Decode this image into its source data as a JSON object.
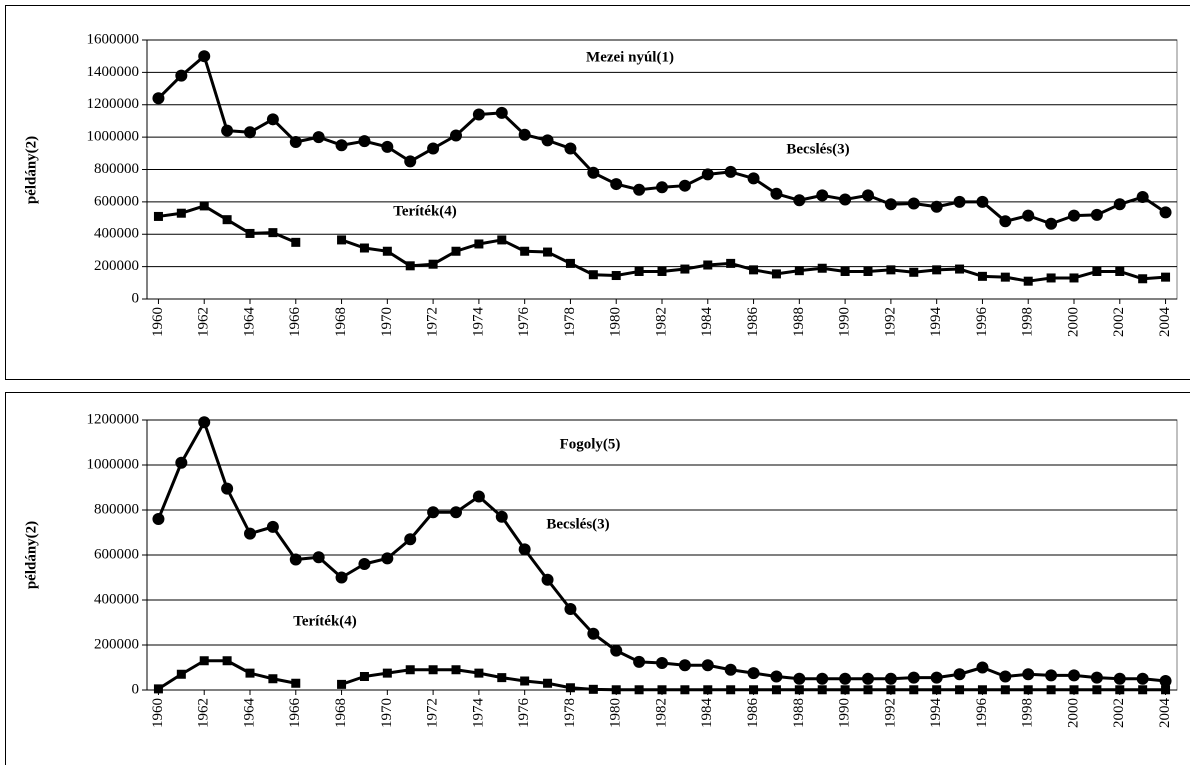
{
  "chart_data": [
    {
      "type": "line",
      "title": "Mezei nyúl(1)",
      "y_label": "példány(2)",
      "x": [
        1960,
        1961,
        1962,
        1963,
        1964,
        1965,
        1966,
        1967,
        1968,
        1969,
        1970,
        1971,
        1972,
        1973,
        1974,
        1975,
        1976,
        1977,
        1978,
        1979,
        1980,
        1981,
        1982,
        1983,
        1984,
        1985,
        1986,
        1987,
        1988,
        1989,
        1990,
        1991,
        1992,
        1993,
        1994,
        1995,
        1996,
        1997,
        1998,
        1999,
        2000,
        2001,
        2002,
        2003,
        2004
      ],
      "xlim": [
        1959.5,
        2004.5
      ],
      "xticks": [
        1960,
        1962,
        1964,
        1966,
        1968,
        1970,
        1972,
        1974,
        1976,
        1978,
        1980,
        1982,
        1984,
        1986,
        1988,
        1990,
        1992,
        1994,
        1996,
        1998,
        2000,
        2002,
        2004
      ],
      "ylim": [
        0,
        1600000
      ],
      "yticks": [
        0,
        200000,
        400000,
        600000,
        800000,
        1000000,
        1200000,
        1400000,
        1600000
      ],
      "grid": true,
      "series": [
        {
          "name": "Becslés(3)",
          "color": "#000000",
          "marker": "circle",
          "values": [
            1240000,
            1380000,
            1500000,
            1040000,
            1030000,
            1110000,
            970000,
            1000000,
            950000,
            975000,
            940000,
            850000,
            930000,
            1010000,
            1140000,
            1150000,
            1015000,
            980000,
            930000,
            780000,
            710000,
            675000,
            690000,
            700000,
            770000,
            785000,
            745000,
            650000,
            610000,
            640000,
            615000,
            640000,
            585000,
            590000,
            570000,
            600000,
            600000,
            480000,
            515000,
            465000,
            515000,
            520000,
            585000,
            630000,
            535000
          ]
        },
        {
          "name": "Teríték(4)",
          "color": "#000000",
          "marker": "square",
          "values": [
            510000,
            530000,
            575000,
            490000,
            405000,
            410000,
            350000,
            null,
            365000,
            315000,
            295000,
            205000,
            215000,
            295000,
            340000,
            365000,
            295000,
            290000,
            220000,
            150000,
            145000,
            170000,
            170000,
            185000,
            210000,
            220000,
            180000,
            155000,
            175000,
            190000,
            170000,
            170000,
            180000,
            165000,
            180000,
            185000,
            140000,
            135000,
            110000,
            130000,
            130000,
            170000,
            170000,
            125000,
            135000
          ]
        }
      ]
    },
    {
      "type": "line",
      "title": "Fogoly(5)",
      "y_label": "példány(2)",
      "x": [
        1960,
        1961,
        1962,
        1963,
        1964,
        1965,
        1966,
        1967,
        1968,
        1969,
        1970,
        1971,
        1972,
        1973,
        1974,
        1975,
        1976,
        1977,
        1978,
        1979,
        1980,
        1981,
        1982,
        1983,
        1984,
        1985,
        1986,
        1987,
        1988,
        1989,
        1990,
        1991,
        1992,
        1993,
        1994,
        1995,
        1996,
        1997,
        1998,
        1999,
        2000,
        2001,
        2002,
        2003,
        2004
      ],
      "xlim": [
        1959.5,
        2004.5
      ],
      "xticks": [
        1960,
        1962,
        1964,
        1966,
        1968,
        1970,
        1972,
        1974,
        1976,
        1978,
        1980,
        1982,
        1984,
        1986,
        1988,
        1990,
        1992,
        1994,
        1996,
        1998,
        2000,
        2002,
        2004
      ],
      "ylim": [
        0,
        1200000
      ],
      "yticks": [
        0,
        200000,
        400000,
        600000,
        800000,
        1000000,
        1200000
      ],
      "grid": true,
      "series": [
        {
          "name": "Becslés(3)",
          "color": "#000000",
          "marker": "circle",
          "values": [
            760000,
            1010000,
            1190000,
            895000,
            695000,
            725000,
            580000,
            590000,
            500000,
            560000,
            585000,
            670000,
            790000,
            790000,
            860000,
            770000,
            625000,
            490000,
            360000,
            250000,
            175000,
            125000,
            120000,
            110000,
            110000,
            90000,
            75000,
            60000,
            50000,
            50000,
            50000,
            50000,
            50000,
            55000,
            55000,
            70000,
            100000,
            60000,
            70000,
            65000,
            65000,
            55000,
            50000,
            50000,
            40000
          ]
        },
        {
          "name": "Teríték(4)",
          "color": "#000000",
          "marker": "square",
          "values": [
            5000,
            70000,
            130000,
            130000,
            75000,
            50000,
            30000,
            null,
            25000,
            60000,
            75000,
            90000,
            90000,
            90000,
            75000,
            55000,
            40000,
            30000,
            10000,
            3000,
            1000,
            1000,
            1000,
            1000,
            1000,
            1000,
            1000,
            1000,
            1000,
            1000,
            1000,
            1000,
            1000,
            1000,
            1000,
            1000,
            1000,
            1000,
            1000,
            1000,
            1000,
            1000,
            1000,
            1000,
            1000
          ]
        }
      ]
    }
  ]
}
